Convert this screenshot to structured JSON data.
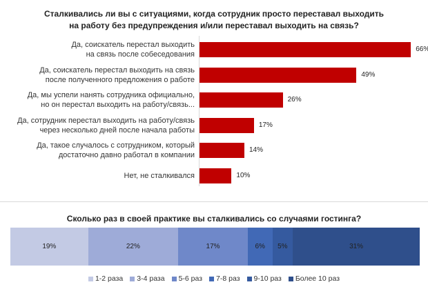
{
  "chart_data": [
    {
      "type": "bar",
      "orientation": "horizontal",
      "title": "Сталкивались ли вы с ситуациями, когда сотрудник просто переставал выходить на работу без предупреждения и/или переставал выходить на связь?",
      "title_lines": [
        "Сталкивались ли вы с ситуациями, когда сотрудник просто переставал выходить",
        "на работу без предупреждения и/или переставал выходить на связь?"
      ],
      "categories": [
        [
          "Да, соискатель перестал выходить",
          "на связь после собеседования"
        ],
        [
          "Да, соискатель перестал выходить на связь",
          "после полученного предложения о работе"
        ],
        [
          "Да, мы успели нанять сотрудника официально,",
          "но он перестал выходить на работу/связь..."
        ],
        [
          "Да, сотрудник перестал выходить на работу/связь",
          "через несколько дней после начала работы"
        ],
        [
          "Да, такое случалось с сотрудником, который",
          "достаточно давно работал в компании"
        ],
        [
          "Нет, не сталкивался"
        ]
      ],
      "values": [
        66,
        49,
        26,
        17,
        14,
        10
      ],
      "labels": [
        "66%",
        "49%",
        "26%",
        "17%",
        "14%",
        "10%"
      ],
      "color": "#c00000",
      "grid": false
    },
    {
      "type": "bar",
      "stacked": true,
      "orientation": "horizontal",
      "title": "Сколько раз в своей практике вы сталкивались со случаями гостинга?",
      "series": [
        {
          "name": "1-2 раза",
          "value": 19,
          "label": "19%",
          "color": "#c3cae4"
        },
        {
          "name": "3-4 раза",
          "value": 22,
          "label": "22%",
          "color": "#9eabd8"
        },
        {
          "name": "5-6 раз",
          "value": 17,
          "label": "17%",
          "color": "#6f88c9"
        },
        {
          "name": "7-8 раз",
          "value": 6,
          "label": "6%",
          "color": "#4169b6"
        },
        {
          "name": "9-10 раз",
          "value": 5,
          "label": "5%",
          "color": "#355a9f"
        },
        {
          "name": "Более 10 раз",
          "value": 31,
          "label": "31%",
          "color": "#2f4f8b"
        }
      ],
      "legend": "bottom"
    }
  ]
}
